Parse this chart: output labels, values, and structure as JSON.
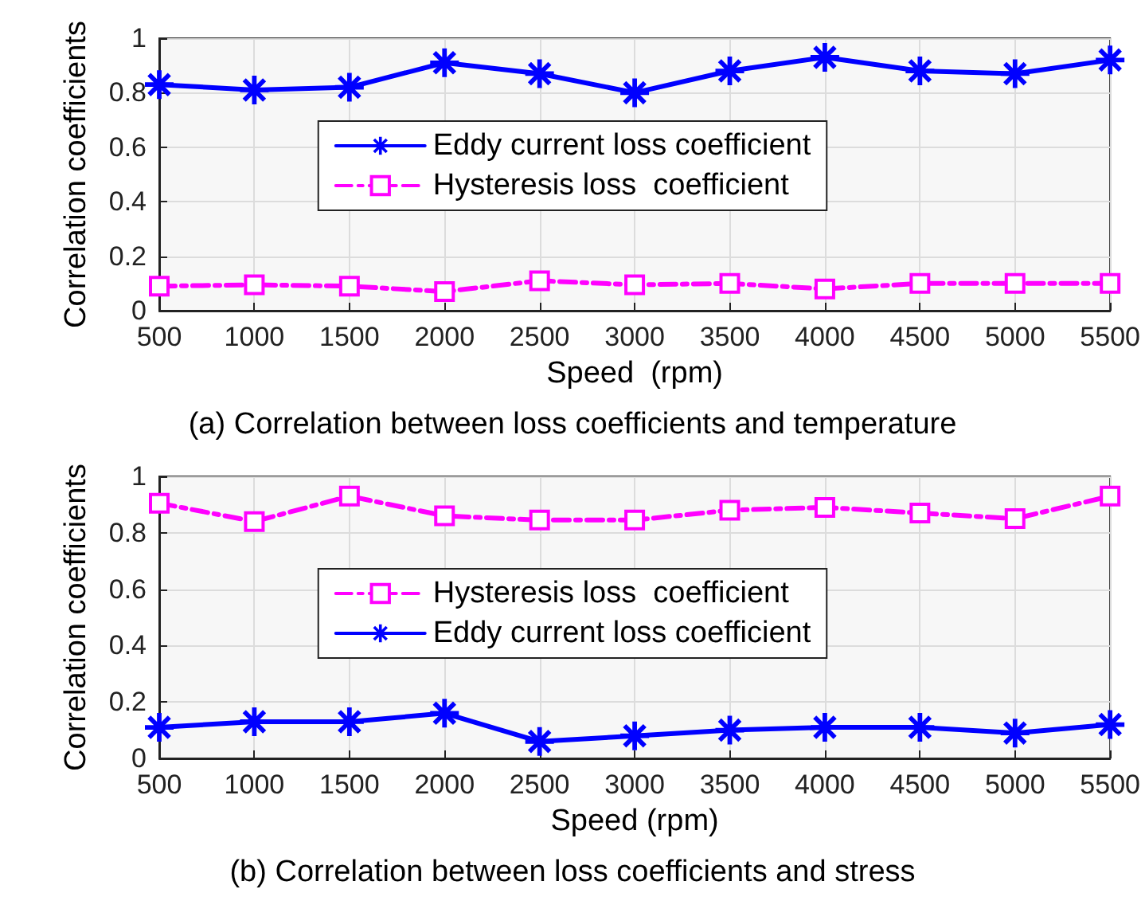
{
  "chart_data": [
    {
      "type": "line",
      "title": "(a) Correlation between loss coefficients and temperature",
      "xlabel": "Speed  (rpm)",
      "ylabel": "Correlation coefficients",
      "x": [
        500,
        1000,
        1500,
        2000,
        2500,
        3000,
        3500,
        4000,
        4500,
        5000,
        5500
      ],
      "xlim": [
        500,
        5500
      ],
      "xticks": [
        500,
        1000,
        1500,
        2000,
        2500,
        3000,
        3500,
        4000,
        4500,
        5000,
        5500
      ],
      "ylim": [
        0,
        1
      ],
      "yticks": [
        0,
        0.2,
        0.4,
        0.6,
        0.8,
        1
      ],
      "grid": true,
      "legend": "center",
      "series": [
        {
          "name": "Eddy current loss coefficient",
          "color": "#0000ff",
          "marker": "star",
          "line_style": "solid",
          "values": [
            0.83,
            0.81,
            0.82,
            0.91,
            0.87,
            0.8,
            0.88,
            0.93,
            0.88,
            0.87,
            0.92
          ]
        },
        {
          "name": "Hysteresis loss  coefficient",
          "color": "#ff00ff",
          "marker": "square",
          "line_style": "dashed",
          "values": [
            0.09,
            0.095,
            0.09,
            0.07,
            0.11,
            0.095,
            0.1,
            0.08,
            0.1,
            0.1,
            0.1
          ]
        }
      ]
    },
    {
      "type": "line",
      "title": "(b) Correlation between loss coefficients and stress",
      "xlabel": "Speed (rpm)",
      "ylabel": "Correlation coefficients",
      "x": [
        500,
        1000,
        1500,
        2000,
        2500,
        3000,
        3500,
        4000,
        4500,
        5000,
        5500
      ],
      "xlim": [
        500,
        5500
      ],
      "xticks": [
        500,
        1000,
        1500,
        2000,
        2500,
        3000,
        3500,
        4000,
        4500,
        5000,
        5500
      ],
      "ylim": [
        0,
        1
      ],
      "yticks": [
        0,
        0.2,
        0.4,
        0.6,
        0.8,
        1
      ],
      "grid": true,
      "legend": "center",
      "series": [
        {
          "name": "Hysteresis loss  coefficient",
          "color": "#ff00ff",
          "marker": "square",
          "line_style": "dashed",
          "values": [
            0.905,
            0.84,
            0.93,
            0.86,
            0.845,
            0.845,
            0.88,
            0.89,
            0.87,
            0.85,
            0.93
          ]
        },
        {
          "name": "Eddy current loss coefficient",
          "color": "#0000ff",
          "marker": "star",
          "line_style": "solid",
          "values": [
            0.11,
            0.13,
            0.13,
            0.16,
            0.06,
            0.08,
            0.1,
            0.11,
            0.11,
            0.09,
            0.12
          ]
        }
      ]
    }
  ]
}
